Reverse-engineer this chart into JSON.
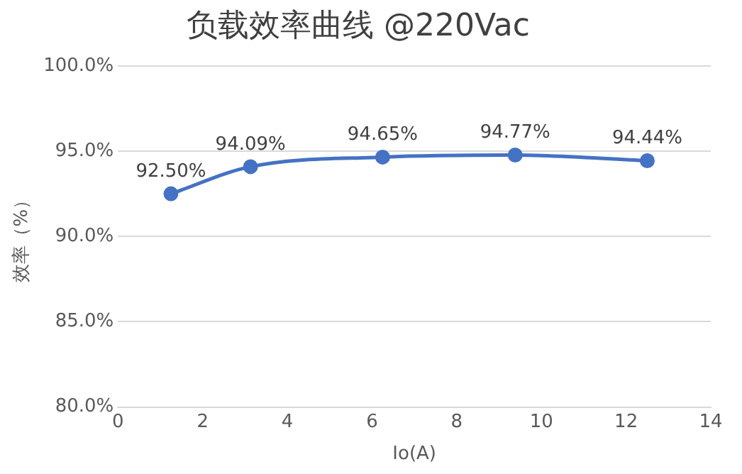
{
  "chart_data": {
    "type": "line",
    "title": "负载效率曲线 @220Vac",
    "xlabel": "Io(A)",
    "ylabel": "效率（%）",
    "x": [
      1.25,
      3.13,
      6.25,
      9.38,
      12.5
    ],
    "series": [
      {
        "color": "#4472c4",
        "values": [
          92.5,
          94.09,
          94.65,
          94.77,
          94.44
        ]
      }
    ],
    "value_labels": [
      "92.50%",
      "94.09%",
      "94.65%",
      "94.77%",
      "94.44%"
    ],
    "xlim": [
      0,
      14
    ],
    "xticks": [
      0,
      2,
      4,
      6,
      8,
      10,
      12,
      14
    ],
    "ylim": [
      80,
      100
    ],
    "yticks": [
      {
        "value": 80,
        "label": "80.0%"
      },
      {
        "value": 85,
        "label": "85.0%"
      },
      {
        "value": 90,
        "label": "90.0%"
      },
      {
        "value": 95,
        "label": "95.0%"
      },
      {
        "value": 100,
        "label": "100.0%"
      }
    ],
    "grid": "y",
    "legend": false,
    "marker": "circle",
    "line_style": "solid"
  }
}
